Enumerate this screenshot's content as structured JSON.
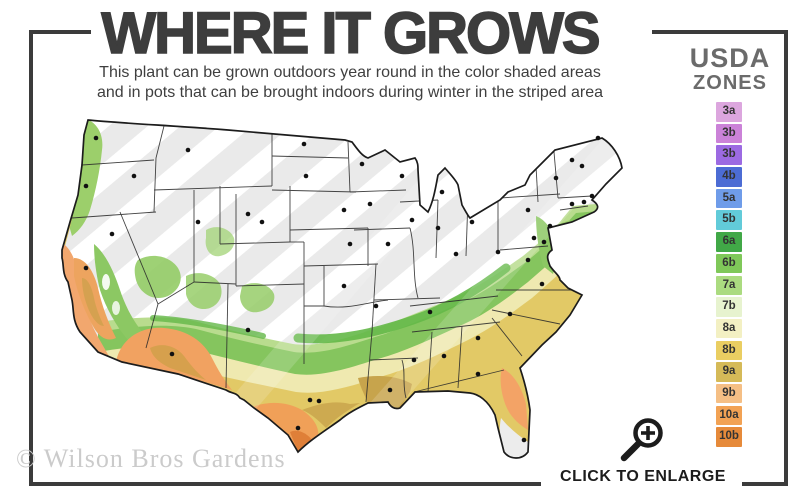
{
  "header": {
    "title": "WHERE IT GROWS",
    "subtitle_line1": "This plant can be grown outdoors year round in the color shaded areas",
    "subtitle_line2": "and in pots that can be brought indoors during winter in the striped area"
  },
  "legend": {
    "title_line1": "USDA",
    "title_line2": "ZONES",
    "zones": [
      {
        "label": "3a",
        "color": "#dca6de"
      },
      {
        "label": "3b",
        "color": "#cb82d8"
      },
      {
        "label": "3b",
        "color": "#9c6ae2"
      },
      {
        "label": "4b",
        "color": "#4c6cd4"
      },
      {
        "label": "5a",
        "color": "#6f9ce9"
      },
      {
        "label": "5b",
        "color": "#62cbd9"
      },
      {
        "label": "6a",
        "color": "#41a847"
      },
      {
        "label": "6b",
        "color": "#7fc859"
      },
      {
        "label": "7a",
        "color": "#abdb80"
      },
      {
        "label": "7b",
        "color": "#e7f3cf"
      },
      {
        "label": "8a",
        "color": "#f3f0c3"
      },
      {
        "label": "8b",
        "color": "#eace62"
      },
      {
        "label": "9a",
        "color": "#d5ba58"
      },
      {
        "label": "9b",
        "color": "#f5bf85"
      },
      {
        "label": "10a",
        "color": "#f2a254"
      },
      {
        "label": "10b",
        "color": "#e68a3a"
      }
    ]
  },
  "map": {
    "striped_area_color": "#eaeaea",
    "stripe_color": "#ffffff",
    "outline_color": "#1c1c1c",
    "state_border_color": "#2b2b2b",
    "city_marker_color": "#111111",
    "band_colors": {
      "light_green": "#b9dc8e",
      "medium_green": "#85c55e",
      "dark_green_edge": "#64b848",
      "pale_yellow": "#efe9b0",
      "gold": "#e2c966",
      "khaki": "#c7a44c",
      "orange": "#f1a261",
      "salmon_coast": "#f2a76e",
      "dark_orange_tip": "#df7f38",
      "gray_fl_tip": "#ececec"
    }
  },
  "enlarge": {
    "label": "CLICK TO ENLARGE",
    "icon": "magnifier-plus-icon"
  },
  "watermark": {
    "text": "© Wilson Bros Gardens"
  },
  "frame_color": "#3b3b3b"
}
